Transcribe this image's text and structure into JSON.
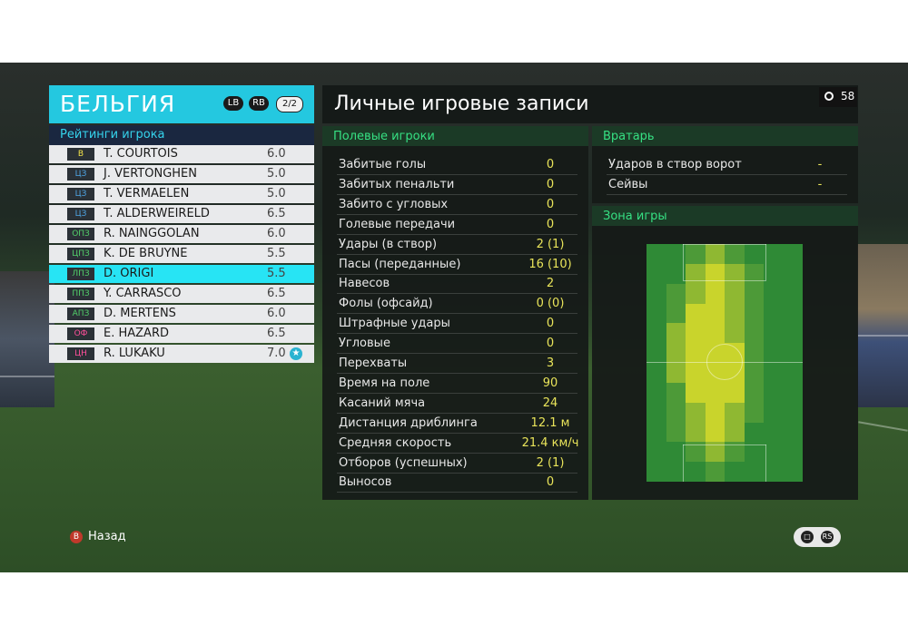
{
  "team": {
    "name": "БЕЛЬГИЯ",
    "lb": "LB",
    "rb": "RB",
    "page": "2/2"
  },
  "roster": {
    "header": "Рейтинги игрока",
    "players": [
      {
        "pos": "В",
        "name": "T. COURTOIS",
        "rating": "6.0",
        "pos_color": "#f2e24a"
      },
      {
        "pos": "ЦЗ",
        "name": "J. VERTONGHEN",
        "rating": "5.0",
        "pos_color": "#4fa6e6"
      },
      {
        "pos": "ЦЗ",
        "name": "T. VERMAELEN",
        "rating": "5.0",
        "pos_color": "#4fa6e6"
      },
      {
        "pos": "ЦЗ",
        "name": "T. ALDERWEIRELD",
        "rating": "6.5",
        "pos_color": "#4fa6e6"
      },
      {
        "pos": "ОПЗ",
        "name": "R. NAINGGOLAN",
        "rating": "6.0",
        "pos_color": "#52d06a"
      },
      {
        "pos": "ЦПЗ",
        "name": "K. DE BRUYNE",
        "rating": "5.5",
        "pos_color": "#52d06a"
      },
      {
        "pos": "ЛПЗ",
        "name": "D. ORIGI",
        "rating": "5.5",
        "pos_color": "#52d06a"
      },
      {
        "pos": "ППЗ",
        "name": "Y. CARRASCO",
        "rating": "6.5",
        "pos_color": "#52d06a"
      },
      {
        "pos": "АПЗ",
        "name": "D. MERTENS",
        "rating": "6.0",
        "pos_color": "#52d06a"
      },
      {
        "pos": "ОФ",
        "name": "E. HAZARD",
        "rating": "6.5",
        "pos_color": "#ff4f9a"
      },
      {
        "pos": "ЦН",
        "name": "R. LUKAKU",
        "rating": "7.0",
        "pos_color": "#ff4f9a"
      }
    ],
    "selected_index": 6,
    "starred_index": 10
  },
  "stats": {
    "title": "Личные игровые записи",
    "timer": "58",
    "field_header": "Полевые игроки",
    "field_rows": [
      {
        "label": "Забитые голы",
        "value": "0"
      },
      {
        "label": "Забитых пенальти",
        "value": "0"
      },
      {
        "label": "Забито с угловых",
        "value": "0"
      },
      {
        "label": "Голевые передачи",
        "value": "0"
      },
      {
        "label": "Удары (в створ)",
        "value": "2 (1)"
      },
      {
        "label": "Пасы (переданные)",
        "value": "16 (10)"
      },
      {
        "label": "Навесов",
        "value": "2"
      },
      {
        "label": "Фолы (офсайд)",
        "value": "0 (0)"
      },
      {
        "label": "Штрафные удары",
        "value": "0"
      },
      {
        "label": "Угловые",
        "value": "0"
      },
      {
        "label": "Перехваты",
        "value": "3"
      },
      {
        "label": "Время на поле",
        "value": "90"
      },
      {
        "label": "Касаний мяча",
        "value": "24"
      },
      {
        "label": "Дистанция дриблинга",
        "value": "12.1 м"
      },
      {
        "label": "Средняя скорость",
        "value": "21.4 км/ч"
      },
      {
        "label": "Отборов (успешных)",
        "value": "2 (1)"
      },
      {
        "label": "Выносов",
        "value": "0"
      }
    ],
    "gk_header": "Вратарь",
    "gk_rows": [
      {
        "label": "Ударов в створ ворот",
        "value": "-"
      },
      {
        "label": "Сейвы",
        "value": "-"
      }
    ],
    "zone_header": "Зона игры"
  },
  "footer": {
    "back_button_glyph": "B",
    "back_label": "Назад",
    "right_icons": [
      "chat-icon",
      "rs-icon"
    ]
  },
  "colors": {
    "accent": "#24c8e0",
    "selected_row": "#27e4f4",
    "stat_value": "#e9e45a",
    "section_header": "#36e083"
  }
}
